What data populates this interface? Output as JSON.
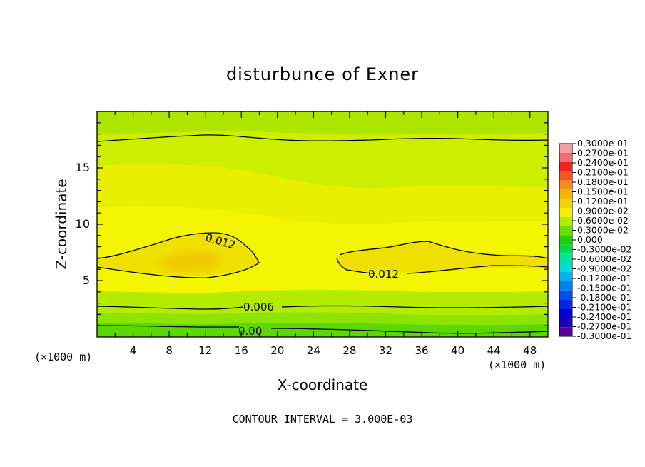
{
  "chart_data": {
    "type": "heatmap",
    "title": "disturbunce of Exner",
    "xlabel": "X-coordinate",
    "ylabel": "Z-coordinate",
    "x_unit": "(×1000 m)",
    "y_unit": "(×1000 m)",
    "footer": "CONTOUR INTERVAL = 3.000E-03",
    "xlim": [
      0,
      50
    ],
    "ylim": [
      0,
      20
    ],
    "x_ticks": [
      4,
      8,
      12,
      16,
      20,
      24,
      28,
      32,
      36,
      40,
      44,
      48
    ],
    "y_ticks": [
      5,
      10,
      15
    ],
    "contour_interval": 0.003,
    "contour_labels": [
      {
        "text": "0.012",
        "x": 14.5,
        "z": 8.6
      },
      {
        "text": "0.012",
        "x": 32.0,
        "z": 5.6
      },
      {
        "text": "0.006",
        "x": 18.2,
        "z": 2.8
      },
      {
        "text": "0.00",
        "x": 17.5,
        "z": 0.5
      }
    ],
    "colorbar_labels": [
      "0.3000e-01",
      "0.2700e-01",
      "0.2400e-01",
      "0.2100e-01",
      "0.1800e-01",
      "0.1500e-01",
      "0.1200e-01",
      "0.9000e-02",
      "0.6000e-02",
      "0.3000e-02",
      "0.000",
      "-0.3000e-02",
      "-0.6000e-02",
      "-0.9000e-02",
      "-0.1200e-01",
      "-0.1500e-01",
      "-0.1800e-01",
      "-0.2100e-01",
      "-0.2400e-01",
      "-0.2700e-01",
      "-0.3000e-01"
    ],
    "colorbar_colors": [
      "#f4a0a0",
      "#f46e6e",
      "#f42020",
      "#f45a20",
      "#f48c20",
      "#f4b400",
      "#f4d400",
      "#f4f000",
      "#b4ec00",
      "#6ae000",
      "#1ed200",
      "#00dc50",
      "#00e6a0",
      "#00dcdc",
      "#00b4f0",
      "#0080f0",
      "#0050f0",
      "#0028e6",
      "#0000dc",
      "#1e00b4",
      "#5a00a0"
    ]
  }
}
